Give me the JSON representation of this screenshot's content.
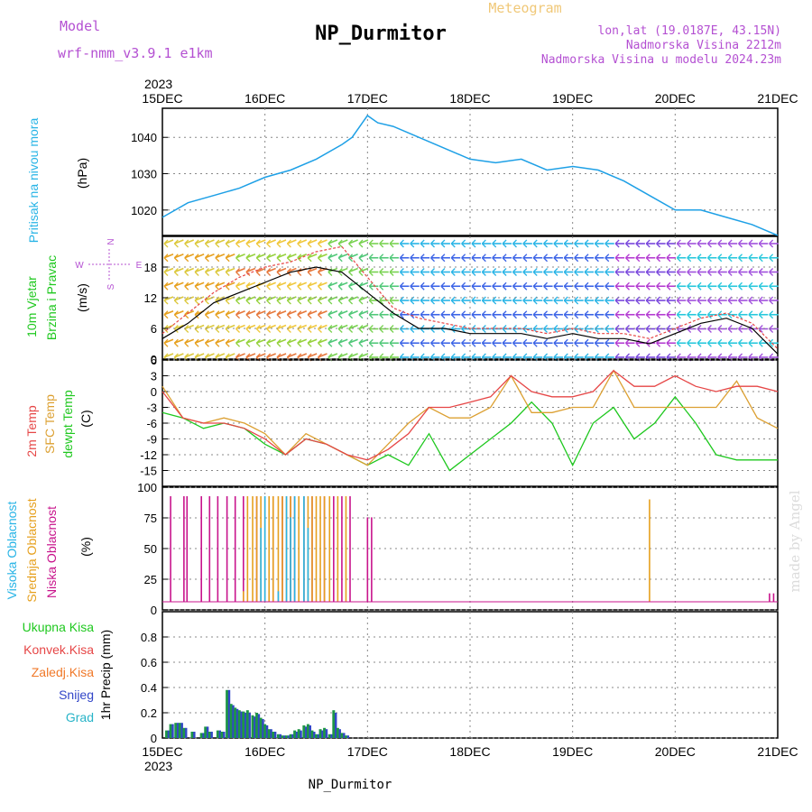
{
  "header": {
    "title": "NP_Durmitor",
    "model_label": "Model",
    "model_name": "wrf-nmm_v3.9.1  e1km",
    "meteogram_label": "Meteogram",
    "lonlat": "lon,lat (19.0187E, 43.15N)",
    "elevation": "Nadmorska Visina 2212m",
    "model_elevation": "Nadmorska Visina u modelu 2024.23m",
    "year_top": "2023",
    "year_bottom": "2023",
    "footer_name": "NP_Durmitor",
    "watermark": "made by Angel"
  },
  "colors": {
    "pressure": "#1ea0e6",
    "temp_2m": "#e64646",
    "sfc_temp": "#dca032",
    "dewpt": "#1ec81e",
    "high_cloud": "#28b4e6",
    "mid_cloud": "#e6a01e",
    "low_cloud": "#c8148c",
    "precip_total": "#1e9646",
    "precip_snow": "#3246c8",
    "purple": "#b450d2"
  },
  "date_ticks": [
    "15DEC",
    "16DEC",
    "17DEC",
    "18DEC",
    "19DEC",
    "20DEC",
    "21DEC"
  ],
  "panel_labels": {
    "pressure": [
      "Pritisak na nivou mora",
      "(hPa)"
    ],
    "wind": [
      "10m Vjetar",
      "Brzina i Pravac",
      "(m/s)"
    ],
    "compass": {
      "n": "N",
      "s": "S",
      "e": "E",
      "w": "W"
    },
    "temp": [
      "2m Temp",
      "SFC Temp",
      "dewpt Temp",
      "(C)"
    ],
    "cloud": [
      "Visoka Oblacnost",
      "Srednja Oblacnost",
      "Niska Oblacnost",
      "(%)"
    ],
    "precip": [
      "Ukupna Kisa",
      "Konvek.Kisa",
      "Zaledj.Kisa",
      "Snijeg",
      "Grad",
      "1hr Precip (mm)"
    ]
  },
  "chart_data": [
    {
      "type": "line",
      "title": "Pritisak na nivou mora",
      "ylabel": "(hPa)",
      "ylim": [
        1013,
        1048
      ],
      "yticks": [
        1020,
        1030,
        1040
      ],
      "x_days": [
        0,
        0.25,
        0.5,
        0.75,
        1.0,
        1.25,
        1.5,
        1.75,
        1.85,
        2.0,
        2.1,
        2.25,
        2.5,
        2.75,
        3.0,
        3.25,
        3.5,
        3.75,
        4.0,
        4.25,
        4.5,
        4.75,
        5.0,
        5.25,
        5.5,
        5.75,
        6.0
      ],
      "series": [
        {
          "name": "Pritisak na nivou mora",
          "y": [
            1018,
            1022,
            1024,
            1026,
            1029,
            1031,
            1034,
            1038,
            1040,
            1046,
            1044,
            1043,
            1040,
            1037,
            1034,
            1033,
            1034,
            1031,
            1032,
            1031,
            1028,
            1024,
            1020,
            1020,
            1018,
            1016,
            1013
          ]
        }
      ],
      "grid": true
    },
    {
      "type": "line",
      "title": "10m Vjetar Brzina i Pravac",
      "ylabel": "(m/s)",
      "ylim": [
        0,
        24
      ],
      "yticks": [
        0,
        6,
        12,
        18
      ],
      "x_days": [
        0,
        0.25,
        0.5,
        0.75,
        1.0,
        1.25,
        1.5,
        1.75,
        2.0,
        2.25,
        2.5,
        2.75,
        3.0,
        3.25,
        3.5,
        3.75,
        4.0,
        4.25,
        4.5,
        4.75,
        5.0,
        5.25,
        5.5,
        5.75,
        6.0
      ],
      "series": [
        {
          "name": "10m wind speed",
          "y": [
            4,
            7,
            11,
            13,
            15,
            17,
            18,
            17,
            13,
            9,
            6,
            6,
            5,
            5,
            5,
            4,
            5,
            4,
            4,
            3,
            5,
            7,
            8,
            6,
            1
          ]
        },
        {
          "name": "10m wind gust",
          "y": [
            5,
            9,
            13,
            16,
            18,
            19,
            21,
            22,
            16,
            10,
            8,
            7,
            6,
            6,
            6,
            5,
            6,
            5,
            5,
            4,
            6,
            8,
            9,
            7,
            2
          ]
        }
      ],
      "grid": true
    },
    {
      "type": "line",
      "title": "2m Temp / SFC Temp / dewpt Temp",
      "ylabel": "(C)",
      "ylim": [
        -18,
        6
      ],
      "yticks": [
        -15,
        -12,
        -9,
        -6,
        -3,
        0,
        3,
        6
      ],
      "x_days": [
        0,
        0.2,
        0.4,
        0.6,
        0.8,
        1.0,
        1.2,
        1.4,
        1.6,
        1.8,
        2.0,
        2.2,
        2.4,
        2.6,
        2.8,
        3.0,
        3.2,
        3.4,
        3.6,
        3.8,
        4.0,
        4.2,
        4.4,
        4.6,
        4.8,
        5.0,
        5.2,
        5.4,
        5.6,
        5.8,
        6.0
      ],
      "series": [
        {
          "name": "2m Temp",
          "y": [
            0,
            -5,
            -6,
            -6,
            -7,
            -9,
            -12,
            -9,
            -10,
            -12,
            -13,
            -11,
            -8,
            -3,
            -3,
            -2,
            -1,
            3,
            0,
            -1,
            -1,
            0,
            4,
            1,
            1,
            3,
            1,
            0,
            1,
            1,
            0
          ]
        },
        {
          "name": "SFC Temp",
          "y": [
            1,
            -5,
            -6,
            -5,
            -6,
            -8,
            -12,
            -8,
            -10,
            -12,
            -14,
            -10,
            -6,
            -3,
            -5,
            -5,
            -3,
            3,
            -4,
            -4,
            -3,
            -3,
            4,
            -3,
            -3,
            -3,
            -3,
            -3,
            2,
            -5,
            -7
          ]
        },
        {
          "name": "dewpt Temp",
          "y": [
            -4,
            -5,
            -7,
            -6,
            -7,
            -10,
            -12,
            -9,
            -10,
            -12,
            -14,
            -12,
            -14,
            -8,
            -15,
            -12,
            -9,
            -6,
            -2,
            -6,
            -14,
            -6,
            -3,
            -9,
            -6,
            -1,
            -6,
            -12,
            -13,
            -13,
            -13
          ]
        }
      ],
      "grid": true
    },
    {
      "type": "bar",
      "title": "Oblacnost",
      "ylabel": "(%)",
      "ylim": [
        0,
        100
      ],
      "yticks": [
        0,
        25,
        50,
        75,
        100
      ],
      "series": [
        {
          "name": "Niska Oblacnost",
          "x_days": [
            0.08,
            0.21,
            0.24,
            0.38,
            0.46,
            0.54,
            0.63,
            0.71,
            0.79,
            0.92,
            1.08,
            1.17,
            1.25,
            1.29,
            1.38,
            1.46,
            1.58,
            1.67,
            1.75,
            1.83,
            2.0,
            2.04,
            5.92,
            5.96
          ],
          "values": [
            100,
            100,
            100,
            100,
            100,
            100,
            100,
            100,
            100,
            100,
            100,
            100,
            100,
            100,
            100,
            100,
            100,
            100,
            100,
            100,
            80,
            80,
            8,
            8
          ]
        },
        {
          "name": "Srednja Oblacnost",
          "x_days": [
            0.79,
            0.83,
            0.88,
            0.92,
            0.96,
            1.0,
            1.04,
            1.08,
            1.13,
            1.17,
            1.21,
            1.25,
            1.29,
            1.33,
            1.38,
            1.42,
            1.46,
            1.5,
            1.54,
            1.58,
            1.63,
            1.71,
            1.79,
            4.75
          ],
          "values": [
            10,
            100,
            100,
            100,
            100,
            100,
            100,
            100,
            100,
            100,
            100,
            100,
            100,
            100,
            100,
            100,
            100,
            100,
            100,
            100,
            100,
            100,
            100,
            97
          ]
        },
        {
          "name": "Visoka Oblacnost",
          "x_days": [
            0.96,
            1.0,
            1.13,
            1.21,
            1.25,
            1.29,
            1.38,
            1.42
          ],
          "values": [
            70,
            100,
            10,
            100,
            80,
            100,
            100,
            70
          ]
        }
      ],
      "grid": true
    },
    {
      "type": "bar",
      "title": "1hr Precip",
      "ylabel": "1hr Precip (mm)",
      "ylim": [
        0,
        1.0
      ],
      "yticks": [
        0,
        0.2,
        0.4,
        0.6,
        0.8
      ],
      "x_days": [
        0.04,
        0.08,
        0.13,
        0.17,
        0.21,
        0.29,
        0.38,
        0.42,
        0.46,
        0.54,
        0.58,
        0.63,
        0.67,
        0.71,
        0.75,
        0.79,
        0.83,
        0.88,
        0.92,
        0.96,
        1.0,
        1.04,
        1.08,
        1.13,
        1.17,
        1.21,
        1.25,
        1.29,
        1.33,
        1.38,
        1.42,
        1.46,
        1.5,
        1.54,
        1.58,
        1.63,
        1.67,
        1.71,
        1.75,
        1.79
      ],
      "series": [
        {
          "name": "Ukupna Kisa",
          "values": [
            0.06,
            0.11,
            0.12,
            0.12,
            0.08,
            0.05,
            0.04,
            0.09,
            0.05,
            0.06,
            0.05,
            0.38,
            0.27,
            0.24,
            0.22,
            0.21,
            0.22,
            0.18,
            0.2,
            0.16,
            0.11,
            0.07,
            0.05,
            0.03,
            0.02,
            0.02,
            0.03,
            0.06,
            0.07,
            0.1,
            0.11,
            0.06,
            0.03,
            0.07,
            0.08,
            0.03,
            0.22,
            0.08,
            0.04,
            0.02
          ]
        },
        {
          "name": "Snijeg",
          "values": [
            0.06,
            0.11,
            0.12,
            0.12,
            0.08,
            0.05,
            0.04,
            0.09,
            0.05,
            0.06,
            0.05,
            0.38,
            0.26,
            0.23,
            0.21,
            0.2,
            0.2,
            0.17,
            0.19,
            0.15,
            0.1,
            0.07,
            0.05,
            0.03,
            0.02,
            0.02,
            0.03,
            0.05,
            0.06,
            0.09,
            0.1,
            0.05,
            0.03,
            0.06,
            0.07,
            0.03,
            0.2,
            0.07,
            0.04,
            0.02
          ]
        }
      ],
      "grid": true
    }
  ]
}
